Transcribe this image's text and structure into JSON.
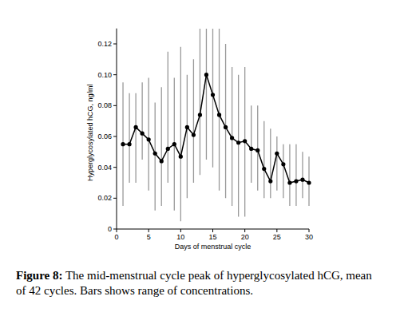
{
  "chart_data": {
    "type": "line",
    "caption_label": "Figure 8:",
    "caption": "The mid-menstrual cycle peak of hyperglycosylated hCG, mean of 42 cycles. Bars shows range of concentrations.",
    "x_label": "Days of menstrual cycle",
    "y_label": "Hyperglycosylated hCG, ng/ml",
    "x": [
      1,
      2,
      3,
      4,
      5,
      6,
      7,
      8,
      9,
      10,
      11,
      12,
      13,
      14,
      15,
      16,
      17,
      18,
      19,
      20,
      21,
      22,
      23,
      24,
      25,
      26,
      27,
      28,
      29,
      30
    ],
    "series": [
      {
        "name": "Hyperglycosylated hCG",
        "color": "#000000",
        "marker": "circle",
        "line_style": "solid",
        "values": [
          0.055,
          0.055,
          0.066,
          0.062,
          0.058,
          0.049,
          0.044,
          0.052,
          0.055,
          0.047,
          0.066,
          0.061,
          0.074,
          0.1,
          0.087,
          0.074,
          0.066,
          0.059,
          0.056,
          0.057,
          0.052,
          0.051,
          0.039,
          0.031,
          0.049,
          0.042,
          0.03,
          0.031,
          0.032,
          0.03
        ],
        "range_low": [
          0.015,
          0.03,
          0.03,
          0.045,
          0.025,
          0.012,
          0.015,
          0.03,
          0.012,
          0.005,
          0.02,
          0.03,
          0.035,
          0.045,
          0.04,
          0.025,
          0.02,
          0.015,
          0.008,
          0.008,
          0.03,
          0.025,
          0.02,
          0.02,
          0.025,
          0.02,
          0.015,
          0.015,
          0.02,
          0.015
        ],
        "range_high": [
          0.095,
          0.088,
          0.088,
          0.095,
          0.098,
          0.082,
          0.092,
          0.115,
          0.098,
          0.118,
          0.1,
          0.11,
          0.13,
          0.13,
          0.13,
          0.13,
          0.12,
          0.105,
          0.1,
          0.105,
          0.08,
          0.08,
          0.07,
          0.065,
          0.06,
          0.055,
          0.055,
          0.055,
          0.05,
          0.047
        ],
        "range_color": "#999999"
      }
    ],
    "xlim": [
      0,
      30
    ],
    "xticks": [
      0,
      5,
      10,
      15,
      20,
      25,
      30
    ],
    "ylim": [
      0,
      0.13
    ],
    "yticks": [
      0,
      0.02,
      0.04,
      0.06,
      0.08,
      {
        "value": 0.1,
        "label": "0.10"
      },
      0.12
    ],
    "grid": false
  }
}
